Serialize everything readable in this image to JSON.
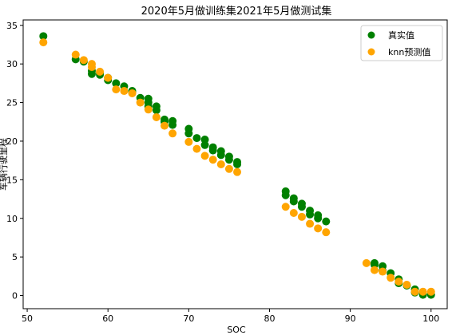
{
  "chart_data": {
    "type": "scatter",
    "title": "2020年5月做训练集2021年5月做测试集",
    "xlabel": "SOC",
    "ylabel": "车辆行驶里程",
    "xlim": [
      49.5,
      102
    ],
    "ylim": [
      -1.7,
      35.7
    ],
    "xticks": [
      50,
      60,
      70,
      80,
      90,
      100
    ],
    "yticks": [
      0,
      5,
      10,
      15,
      20,
      25,
      30,
      35
    ],
    "grid": false,
    "legend_position": "top-right",
    "series": [
      {
        "name": "真实值",
        "color": "#008000",
        "points": [
          [
            52,
            33.6
          ],
          [
            56,
            30.6
          ],
          [
            57,
            30.3
          ],
          [
            58,
            29.1
          ],
          [
            58,
            28.7
          ],
          [
            59,
            28.6
          ],
          [
            59,
            28.8
          ],
          [
            60,
            27.9
          ],
          [
            60,
            28.2
          ],
          [
            61,
            27.5
          ],
          [
            62,
            27.1
          ],
          [
            63,
            26.5
          ],
          [
            63,
            26.3
          ],
          [
            64,
            25.6
          ],
          [
            65,
            25.5
          ],
          [
            65,
            25.0
          ],
          [
            65,
            24.5
          ],
          [
            66,
            24.5
          ],
          [
            66,
            24.0
          ],
          [
            67,
            22.8
          ],
          [
            67,
            22.5
          ],
          [
            68,
            22.6
          ],
          [
            68,
            22.1
          ],
          [
            70,
            21.6
          ],
          [
            70,
            21.0
          ],
          [
            71,
            20.4
          ],
          [
            72,
            20.2
          ],
          [
            72,
            19.5
          ],
          [
            73,
            19.2
          ],
          [
            73,
            18.8
          ],
          [
            74,
            18.7
          ],
          [
            74,
            18.2
          ],
          [
            75,
            18.0
          ],
          [
            75,
            17.6
          ],
          [
            76,
            17.3
          ],
          [
            76,
            17.0
          ],
          [
            82,
            13.5
          ],
          [
            82,
            13.0
          ],
          [
            83,
            12.6
          ],
          [
            83,
            12.2
          ],
          [
            84,
            11.9
          ],
          [
            84,
            11.5
          ],
          [
            85,
            11.0
          ],
          [
            85,
            10.5
          ],
          [
            86,
            10.4
          ],
          [
            86,
            10.0
          ],
          [
            87,
            9.6
          ],
          [
            93,
            4.2
          ],
          [
            93,
            4.0
          ],
          [
            94,
            3.8
          ],
          [
            94,
            3.2
          ],
          [
            95,
            2.9
          ],
          [
            96,
            2.1
          ],
          [
            96,
            1.6
          ],
          [
            97,
            1.3
          ],
          [
            98,
            0.8
          ],
          [
            98,
            0.4
          ],
          [
            99,
            0.3
          ],
          [
            99,
            0.1
          ],
          [
            100,
            0.1
          ]
        ]
      },
      {
        "name": "knn预测值",
        "color": "#FFA500",
        "points": [
          [
            52,
            32.8
          ],
          [
            56,
            31.2
          ],
          [
            57,
            30.5
          ],
          [
            58,
            30.0
          ],
          [
            58,
            29.6
          ],
          [
            59,
            29.0
          ],
          [
            60,
            28.2
          ],
          [
            61,
            26.7
          ],
          [
            62,
            26.5
          ],
          [
            63,
            26.2
          ],
          [
            64,
            25.0
          ],
          [
            65,
            24.1
          ],
          [
            66,
            23.1
          ],
          [
            67,
            22.0
          ],
          [
            68,
            21.0
          ],
          [
            70,
            19.9
          ],
          [
            71,
            19.0
          ],
          [
            72,
            18.1
          ],
          [
            73,
            17.6
          ],
          [
            74,
            17.0
          ],
          [
            75,
            16.4
          ],
          [
            76,
            16.0
          ],
          [
            82,
            11.5
          ],
          [
            83,
            10.7
          ],
          [
            84,
            10.2
          ],
          [
            85,
            9.3
          ],
          [
            86,
            8.7
          ],
          [
            87,
            8.2
          ],
          [
            92,
            4.2
          ],
          [
            93,
            3.3
          ],
          [
            94,
            3.1
          ],
          [
            95,
            2.3
          ],
          [
            96,
            1.8
          ],
          [
            97,
            1.4
          ],
          [
            98,
            0.5
          ],
          [
            99,
            0.5
          ],
          [
            100,
            0.5
          ]
        ]
      }
    ]
  }
}
